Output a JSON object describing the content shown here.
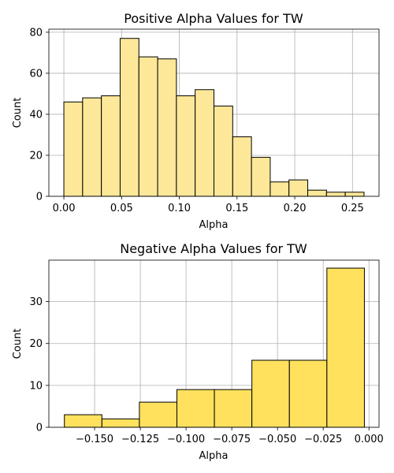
{
  "chart_data": [
    {
      "type": "bar",
      "title": "Positive Alpha Values for TW",
      "xlabel": "Alpha",
      "ylabel": "Count",
      "bin_edges": [
        0.0,
        0.01625,
        0.0325,
        0.04875,
        0.065,
        0.08125,
        0.0975,
        0.11375,
        0.13,
        0.14625,
        0.1625,
        0.17875,
        0.195,
        0.21125,
        0.2275,
        0.24375,
        0.26
      ],
      "values": [
        46,
        48,
        49,
        77,
        68,
        67,
        49,
        52,
        44,
        29,
        19,
        7,
        8,
        3,
        2,
        2
      ],
      "xlim": [
        -0.013,
        0.273
      ],
      "ylim": [
        0,
        81.5
      ],
      "xticks": [
        0.0,
        0.05,
        0.1,
        0.15,
        0.2,
        0.25
      ],
      "xtick_labels": [
        "0.00",
        "0.05",
        "0.10",
        "0.15",
        "0.20",
        "0.25"
      ],
      "yticks": [
        0,
        20,
        40,
        60,
        80
      ],
      "ytick_labels": [
        "0",
        "20",
        "40",
        "60",
        "80"
      ],
      "color": "#fde899",
      "grid": true
    },
    {
      "type": "bar",
      "title": "Negative Alpha Values for TW",
      "xlabel": "Alpha",
      "ylabel": "Count",
      "bin_edges": [
        -0.1665,
        -0.146,
        -0.1255,
        -0.105,
        -0.0845,
        -0.064,
        -0.0435,
        -0.023,
        -0.0025
      ],
      "values": [
        3,
        2,
        6,
        9,
        9,
        16,
        16,
        38
      ],
      "xlim": [
        -0.175,
        0.0055
      ],
      "ylim": [
        0,
        39.9
      ],
      "xticks": [
        -0.15,
        -0.125,
        -0.1,
        -0.075,
        -0.05,
        -0.025,
        0.0
      ],
      "xtick_labels": [
        "−0.150",
        "−0.125",
        "−0.100",
        "−0.075",
        "−0.050",
        "−0.025",
        "0.000"
      ],
      "yticks": [
        0,
        10,
        20,
        30
      ],
      "ytick_labels": [
        "0",
        "10",
        "20",
        "30"
      ],
      "color": "#ffe15e",
      "grid": true
    }
  ]
}
